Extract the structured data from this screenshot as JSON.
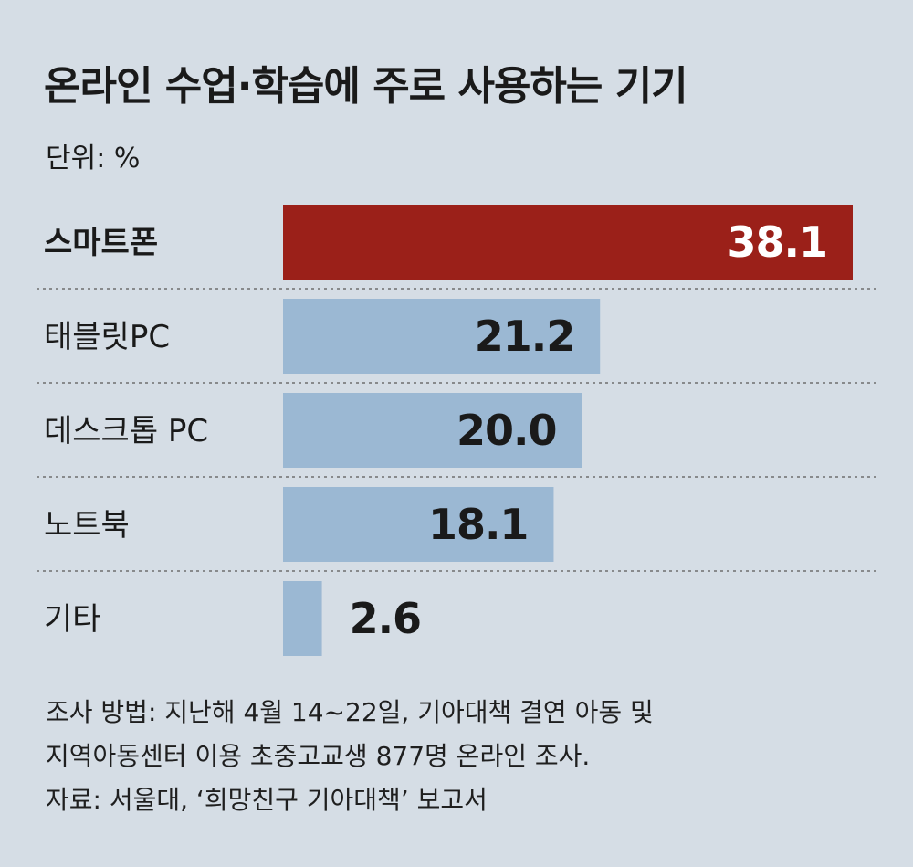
{
  "chart_data": {
    "type": "bar",
    "orientation": "horizontal",
    "title": "온라인 수업·학습에 주로 사용하는 기기",
    "unit_label": "단위: %",
    "categories": [
      "스마트폰",
      "태블릿PC",
      "데스크톱 PC",
      "노트북",
      "기타"
    ],
    "values": [
      38.1,
      21.2,
      20.0,
      18.1,
      2.6
    ],
    "value_labels": [
      "38.1",
      "21.2",
      "20.0",
      "18.1",
      "2.6"
    ],
    "highlight_index": 0,
    "grid": false,
    "colors": {
      "highlight": "#9b2019",
      "bar": "#9bb8d3",
      "separator": "#6e6e6e",
      "background": "#d5dde5"
    }
  },
  "notes": [
    "조사 방법: 지난해 4월 14~22일, 기아대책 결연 아동 및",
    "지역아동센터 이용 초중고교생 877명 온라인 조사.",
    "자료: 서울대, ‘희망친구 기아대책’ 보고서"
  ]
}
